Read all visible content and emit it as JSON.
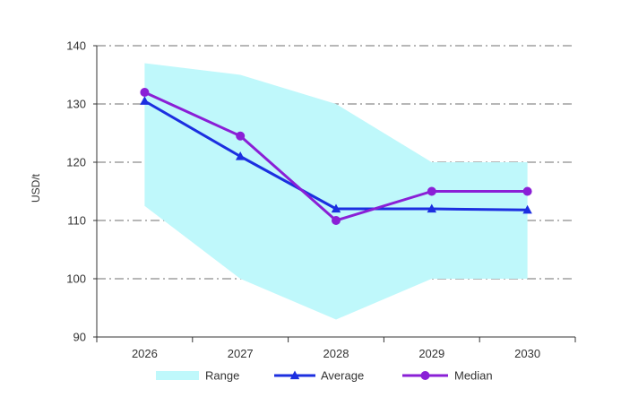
{
  "chart_data": {
    "type": "line",
    "categories": [
      "2026",
      "2027",
      "2028",
      "2029",
      "2030"
    ],
    "ylabel": "USD/t",
    "ylim": [
      90,
      140
    ],
    "yticks": [
      90,
      100,
      110,
      120,
      130,
      140
    ],
    "grid": "horizontal dash-dot",
    "legend_position": "bottom",
    "range": {
      "name": "Range",
      "color": "#bff8fb",
      "low": [
        112.5,
        100,
        93,
        100,
        100
      ],
      "high": [
        137,
        135,
        130,
        120,
        120
      ]
    },
    "series": [
      {
        "name": "Average",
        "color": "#1c2fe0",
        "marker": "triangle",
        "values": [
          130.5,
          121,
          112,
          112,
          111.8
        ]
      },
      {
        "name": "Median",
        "color": "#8a1fd6",
        "marker": "circle",
        "values": [
          132,
          124.5,
          110,
          115,
          115
        ]
      }
    ]
  }
}
